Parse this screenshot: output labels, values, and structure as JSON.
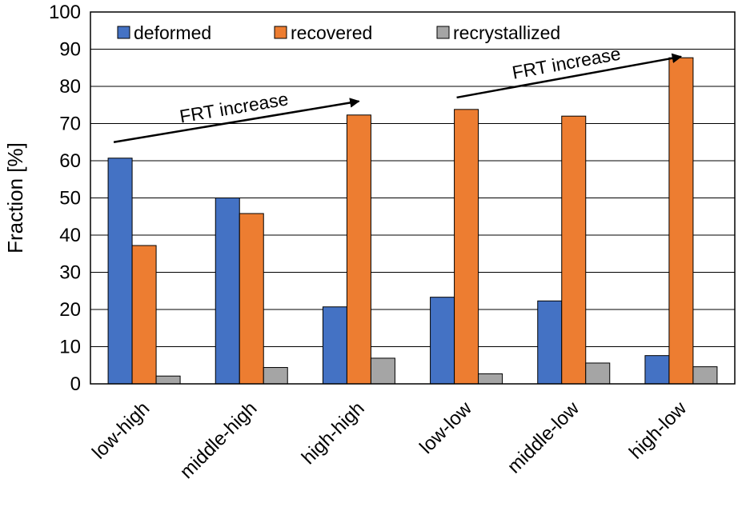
{
  "chart_data": {
    "type": "bar",
    "title": "",
    "xlabel": "",
    "ylabel": "Fraction [%]",
    "ylim": [
      0,
      100
    ],
    "yticks": [
      0,
      10,
      20,
      30,
      40,
      50,
      60,
      70,
      80,
      90,
      100
    ],
    "grid": "horizontal",
    "legend_position": "top-inside",
    "categories": [
      "low-high",
      "middle-high",
      "high-high",
      "low-low",
      "middle-low",
      "high-low"
    ],
    "series": [
      {
        "name": "deformed",
        "color": "#4472C4",
        "values": [
          60.7,
          50.0,
          20.7,
          23.3,
          22.3,
          7.6
        ]
      },
      {
        "name": "recovered",
        "color": "#ED7D31",
        "values": [
          37.2,
          45.8,
          72.3,
          73.8,
          72.0,
          87.7
        ]
      },
      {
        "name": "recrystallized",
        "color": "#A5A5A5",
        "values": [
          2.1,
          4.4,
          6.9,
          2.7,
          5.6,
          4.6
        ]
      }
    ],
    "annotations": [
      {
        "text": "FRT increase",
        "from": {
          "category": "low-high",
          "y": 65
        },
        "to": {
          "category": "high-high",
          "y": 76
        }
      },
      {
        "text": "FRT increase",
        "from": {
          "category": "low-low",
          "y": 77
        },
        "to": {
          "category": "high-low",
          "y": 88
        }
      }
    ]
  }
}
